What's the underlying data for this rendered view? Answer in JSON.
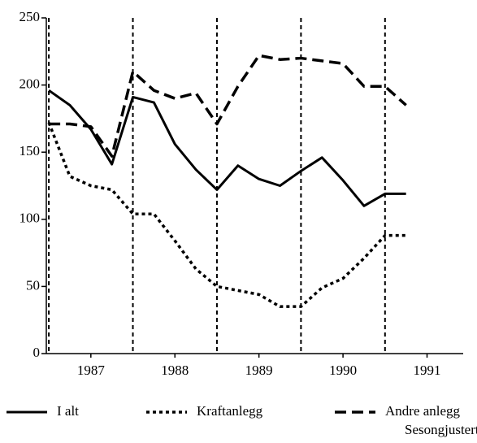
{
  "chart_data": {
    "type": "line",
    "x": [
      1987,
      1987.25,
      1987.5,
      1987.75,
      1988,
      1988.25,
      1988.5,
      1988.75,
      1989,
      1989.25,
      1989.5,
      1989.75,
      1990,
      1990.25,
      1990.5,
      1990.75,
      1991,
      1991.25
    ],
    "series": [
      {
        "name": "I alt",
        "color": "#000000",
        "dash": "solid",
        "values": [
          196,
          185,
          167,
          141,
          191,
          187,
          156,
          137,
          122,
          140,
          130,
          125,
          136,
          146,
          129,
          110,
          119,
          119
        ]
      },
      {
        "name": "Kraftanlegg",
        "color": "#000000",
        "dash": "dotted",
        "values": [
          172,
          132,
          125,
          122,
          104,
          104,
          84,
          63,
          50,
          47,
          44,
          35,
          35,
          49,
          56,
          71,
          88,
          88
        ]
      },
      {
        "name": "Andre anlegg",
        "color": "#000000",
        "dash": "dashed",
        "values": [
          171,
          171,
          169,
          147,
          210,
          196,
          190,
          194,
          171,
          199,
          222,
          219,
          220,
          218,
          216,
          199,
          199,
          185
        ]
      }
    ],
    "note": "Sesongjustert",
    "xlim": [
      1986.97,
      1991.93
    ],
    "xticks": [
      {
        "value": 1987.5,
        "label": "1987"
      },
      {
        "value": 1988.5,
        "label": "1988"
      },
      {
        "value": 1989.5,
        "label": "1989"
      },
      {
        "value": 1990.5,
        "label": "1990"
      },
      {
        "value": 1991.5,
        "label": "1991"
      }
    ],
    "vlines": [
      1987,
      1988,
      1989,
      1990,
      1991
    ],
    "ylim": [
      0,
      250
    ],
    "yticks": [
      0,
      50,
      100,
      150,
      200,
      250
    ],
    "legend": "bottom"
  }
}
